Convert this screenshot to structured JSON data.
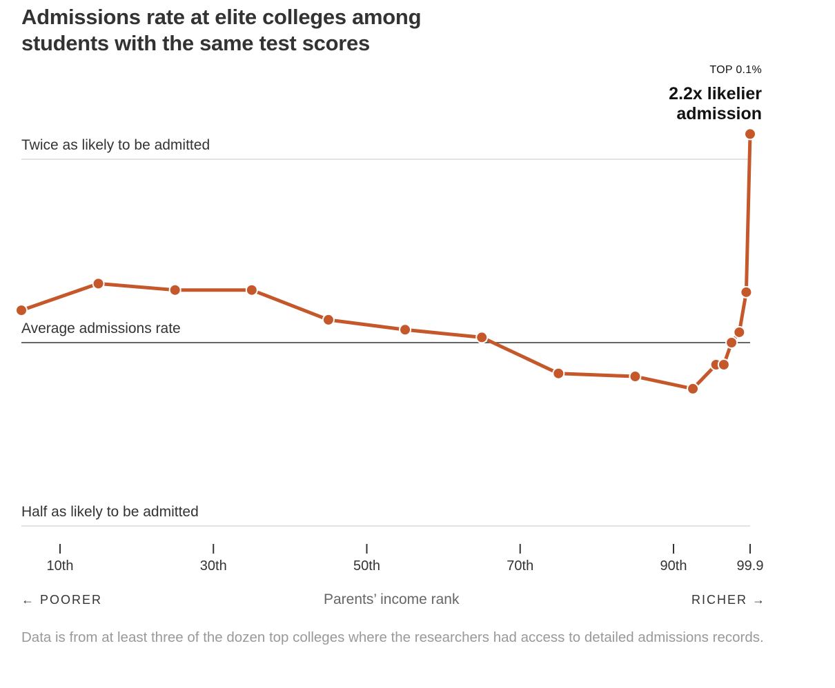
{
  "title": "Admissions rate at elite colleges among students with the same test scores",
  "annotation": {
    "label": "TOP 0.1%",
    "value_text": "2.2x likelier admission"
  },
  "reference_lines": {
    "top": "Twice as likely to be admitted",
    "middle": "Average admissions rate",
    "bottom": "Half as likely to be admitted"
  },
  "x_axis": {
    "title": "Parents’ income rank",
    "left_direction": "← POORER",
    "right_direction": "RICHER →"
  },
  "note": "Data is from at least three of the dozen top colleges where the researchers had access to detailed admissions records.",
  "colors": {
    "line": "#c5582a",
    "gridline": "#d9d9d9",
    "average_line": "#333333"
  },
  "chart_data": {
    "type": "line",
    "title": "Admissions rate at elite colleges among students with the same test scores",
    "xlabel": "Parents’ income rank",
    "ylabel": "",
    "y_scale": "log2 (relative to average admissions rate)",
    "ylim": [
      0.5,
      2.0
    ],
    "xlim": [
      5,
      99.9
    ],
    "x_ticks": [
      10,
      30,
      50,
      70,
      90,
      99.9
    ],
    "x_tick_labels": [
      "10th",
      "30th",
      "50th",
      "70th",
      "90th",
      "99.9"
    ],
    "series": [
      {
        "x": [
          5,
          15,
          25,
          35,
          45,
          55,
          65,
          75,
          85,
          92.5,
          95.5,
          96.5,
          97.5,
          98.5,
          99.4,
          99.9
        ],
        "y": [
          1.13,
          1.25,
          1.22,
          1.22,
          1.09,
          1.05,
          1.02,
          0.89,
          0.88,
          0.84,
          0.92,
          0.92,
          1.0,
          1.04,
          1.21,
          2.2
        ]
      }
    ]
  }
}
